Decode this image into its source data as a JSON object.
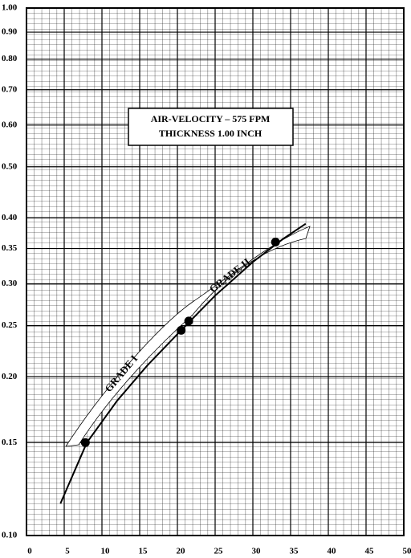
{
  "chart_data": {
    "type": "line",
    "annotation": [
      "AIR-VELOCITY – 575 FPM",
      "THICKNESS 1.00 INCH"
    ],
    "band_labels": [
      "GRADE I",
      "GRADE II"
    ],
    "x": [
      4.5,
      8,
      12,
      16,
      20.5,
      25,
      30,
      34,
      37
    ],
    "values": [
      0.115,
      0.15,
      0.18,
      0.21,
      0.245,
      0.285,
      0.33,
      0.365,
      0.39
    ],
    "points": {
      "x": [
        7.8,
        20.5,
        21.5,
        33
      ],
      "values": [
        0.15,
        0.245,
        0.255,
        0.36
      ]
    },
    "color": "#000000",
    "xlim": [
      0,
      50
    ],
    "xticks": [
      0,
      5,
      10,
      15,
      20,
      25,
      30,
      35,
      40,
      45,
      50
    ],
    "ylim": [
      0.1,
      1.0
    ],
    "log_y": true,
    "grid": true,
    "yticks": [
      {
        "value": 1.0,
        "label": "1.00"
      },
      {
        "value": 0.9,
        "label": "0.90"
      },
      {
        "value": 0.8,
        "label": "0.80"
      },
      {
        "value": 0.7,
        "label": "0.70"
      },
      {
        "value": 0.6,
        "label": "0.60"
      },
      {
        "value": 0.5,
        "label": "0.50"
      },
      {
        "value": 0.4,
        "label": "0.40"
      },
      {
        "value": 0.35,
        "label": "0.35"
      },
      {
        "value": 0.3,
        "label": "0.30"
      },
      {
        "value": 0.25,
        "label": "0.25"
      },
      {
        "value": 0.2,
        "label": "0.20"
      },
      {
        "value": 0.15,
        "label": "0.15"
      },
      {
        "value": 0.1,
        "label": "0.10"
      }
    ]
  }
}
